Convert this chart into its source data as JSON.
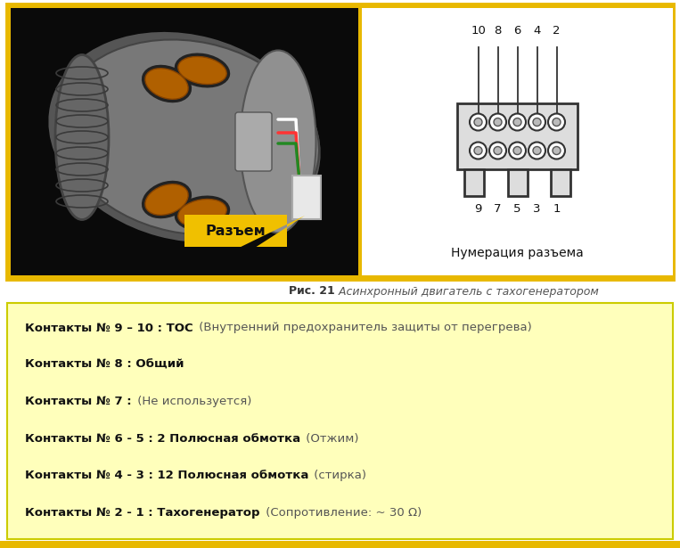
{
  "fig_width": 7.63,
  "fig_height": 6.15,
  "dpi": 100,
  "bg_color": "#ffffff",
  "top_border_color": "#e8b800",
  "caption_bold": "Рис. 21",
  "caption_italic": " Асинхронный двигатель с тахогенератором",
  "info_box_bg": "#ffffbb",
  "info_box_border": "#cccc00",
  "connector_label": "Разъем",
  "connector_label_bg": "#f0c000",
  "numbering_label": "Нумерация разъема",
  "top_numbers": [
    "10",
    "8",
    "6",
    "4",
    "2"
  ],
  "bottom_numbers": [
    "9",
    "7",
    "5",
    "3",
    "1"
  ],
  "lines": [
    {
      "bold_part": "Контакты № 9 – 10 : ТОС",
      "normal_part": " (Внутренний предохранитель защиты от перегрева)"
    },
    {
      "bold_part": "Контакты № 8 : Общий",
      "normal_part": ""
    },
    {
      "bold_part": "Контакты № 7 :",
      "normal_part": " (Не используется)"
    },
    {
      "bold_part": "Контакты № 6 - 5 : 2 Полюсная обмотка",
      "normal_part": " (Отжим)"
    },
    {
      "bold_part": "Контакты № 4 - 3 : 12 Полюсная обмотка",
      "normal_part": " (стирка)"
    },
    {
      "bold_part": "Контакты № 2 - 1 : Тахогенератор",
      "normal_part": " (Сопротивление: ~ 30 Ω)"
    }
  ],
  "bottom_bar_color": "#e8b800",
  "photo_bg": "#0a0a0a",
  "right_panel_bg": "#ffffff",
  "motor_body_color": "#888888",
  "motor_edge_color": "#555555"
}
